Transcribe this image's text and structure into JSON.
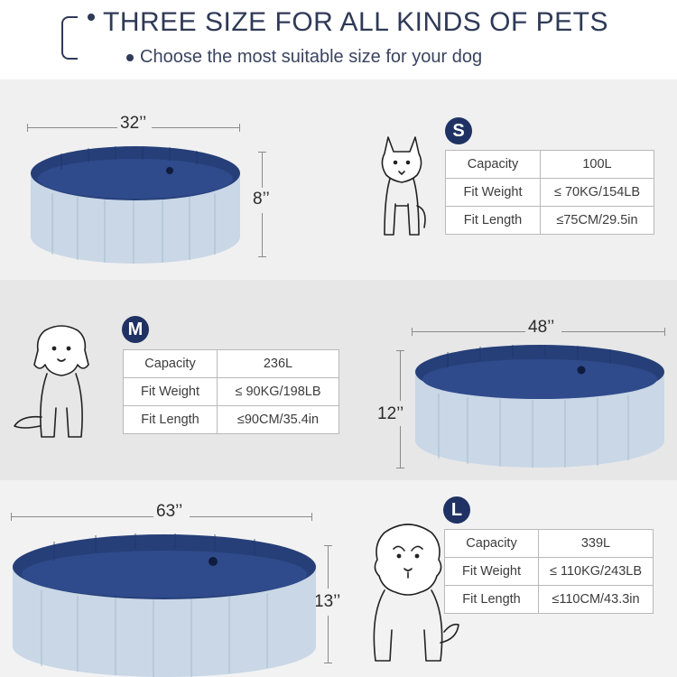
{
  "header": {
    "title": "THREE SIZE FOR ALL KINDS OF PETS",
    "subtitle": "Choose the most suitable size for your dog"
  },
  "colors": {
    "accent": "#1f3263",
    "pool_inner": "#2b4a8a",
    "pool_outer": "#c9d7e6"
  },
  "sizes": {
    "s": {
      "badge": "S",
      "diameter": "32’’",
      "height": "8’’",
      "rows": [
        {
          "label": "Capacity",
          "value": "100L"
        },
        {
          "label": "Fit Weight",
          "value": "≤ 70KG/154LB"
        },
        {
          "label": "Fit Length",
          "value": "≤75CM/29.5in"
        }
      ]
    },
    "m": {
      "badge": "M",
      "diameter": "48’’",
      "height": "12’’",
      "rows": [
        {
          "label": "Capacity",
          "value": "236L"
        },
        {
          "label": "Fit Weight",
          "value": "≤ 90KG/198LB"
        },
        {
          "label": "Fit Length",
          "value": "≤90CM/35.4in"
        }
      ]
    },
    "l": {
      "badge": "L",
      "diameter": "63’’",
      "height": "13’’",
      "rows": [
        {
          "label": "Capacity",
          "value": "339L"
        },
        {
          "label": "Fit Weight",
          "value": "≤ 110KG/243LB"
        },
        {
          "label": "Fit Length",
          "value": "≤110CM/43.3in"
        }
      ]
    }
  }
}
